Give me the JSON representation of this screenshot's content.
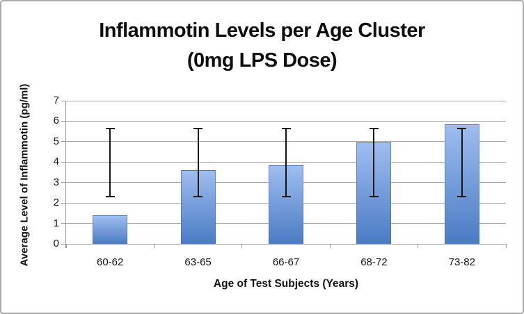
{
  "chart_data": {
    "type": "bar",
    "title": "Inflammotin Levels per Age Cluster",
    "subtitle": "(0mg LPS Dose)",
    "xlabel": "Age of Test Subjects (Years)",
    "ylabel": "Average Level of Inflammotin (pg/ml)",
    "categories": [
      "60-62",
      "63-65",
      "66-67",
      "68-72",
      "73-82"
    ],
    "values": [
      1.4,
      3.6,
      3.85,
      4.95,
      5.85
    ],
    "error_low": [
      2.3,
      2.3,
      2.3,
      2.3,
      2.3
    ],
    "error_high": [
      5.65,
      5.65,
      5.65,
      5.65,
      5.65
    ],
    "ylim": [
      0,
      7
    ],
    "yticks": [
      0,
      1,
      2,
      3,
      4,
      5,
      6,
      7
    ],
    "grid": "on",
    "legend": "none",
    "colors": {
      "bar_gradient_top": "#9fbdef",
      "bar_gradient_bottom": "#4a7bc4",
      "error_bar": "#151515",
      "gridline": "#a3a3a3",
      "axis_line": "#9b9b9b",
      "text": "#111111",
      "chart_border": "#a9a9a9",
      "background": "#ffffff"
    }
  }
}
